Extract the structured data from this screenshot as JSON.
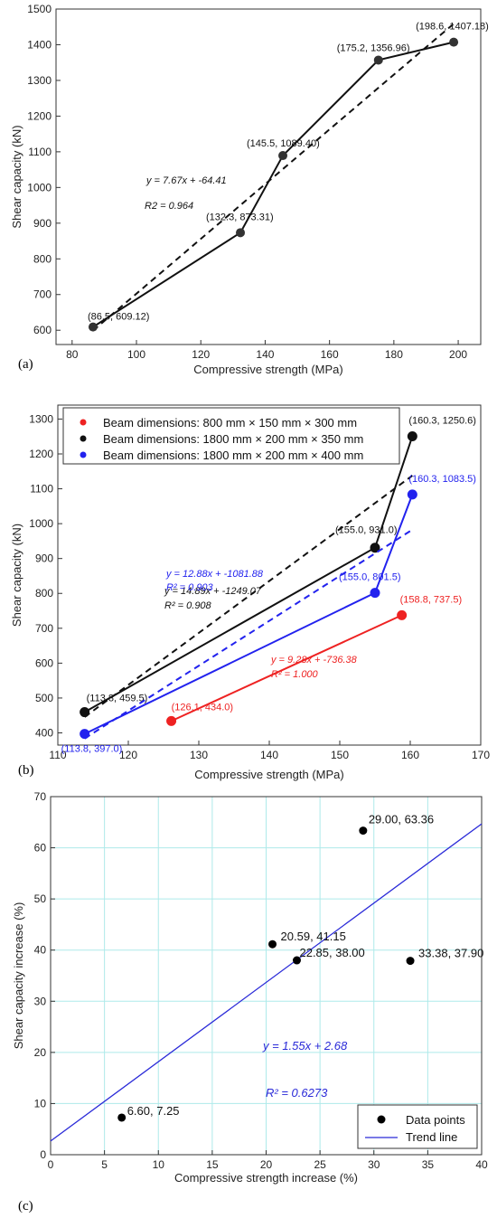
{
  "chart_data": [
    {
      "panel": "(a)",
      "type": "line",
      "xlabel": "Compressive strength (MPa)",
      "ylabel": "Shear capacity (kN)",
      "xlim": [
        75,
        207
      ],
      "ylim": [
        560,
        1500
      ],
      "xticks": [
        80,
        100,
        120,
        140,
        160,
        180,
        200
      ],
      "yticks": [
        600,
        700,
        800,
        900,
        1000,
        1100,
        1200,
        1300,
        1400,
        1500
      ],
      "grid": false,
      "series": [
        {
          "color": "#111111",
          "x": [
            86.5,
            132.3,
            145.5,
            175.2,
            198.6
          ],
          "y": [
            609.12,
            873.31,
            1089.4,
            1356.96,
            1407.18
          ]
        }
      ],
      "point_labels": [
        "(86.5, 609.12)",
        "(132.3, 873.31)",
        "(145.5, 1089.40)",
        "(175.2, 1356.96)",
        "(198.6, 1407.18)"
      ],
      "trend": {
        "slope": 7.67,
        "intercept": -64.41,
        "color": "#111111"
      },
      "annotations": [
        "y = 7.67x + -64.41",
        "R2 = 0.964"
      ]
    },
    {
      "panel": "(b)",
      "type": "line",
      "xlabel": "Compressive strength (MPa)",
      "ylabel": "Shear capacity (kN)",
      "xlim": [
        110,
        170
      ],
      "ylim": [
        365,
        1340
      ],
      "xticks": [
        110,
        120,
        130,
        140,
        150,
        160,
        170
      ],
      "yticks": [
        400,
        500,
        600,
        700,
        800,
        900,
        1000,
        1100,
        1200,
        1300
      ],
      "grid": false,
      "legend": "top-left",
      "series": [
        {
          "name": "Beam dimensions: 800 mm × 150 mm × 300 mm",
          "color": "#ee2222",
          "x": [
            126.1,
            158.8
          ],
          "y": [
            434.0,
            737.5
          ],
          "point_labels": [
            "(126.1, 434.0)",
            "(158.8, 737.5)"
          ],
          "trend": {
            "slope": 9.28,
            "intercept": -736.38
          },
          "eq": "y = 9.28x + -736.38",
          "r2": "R² = 1.000"
        },
        {
          "name": "Beam dimensions: 1800 mm × 200 mm × 350 mm",
          "color": "#111111",
          "x": [
            113.8,
            155.0,
            160.3
          ],
          "y": [
            459.5,
            931.0,
            1250.6
          ],
          "point_labels": [
            "(113.8, 459.5)",
            "(155.0, 931.0)",
            "(160.3, 1250.6)"
          ],
          "trend": {
            "slope": 14.89,
            "intercept": -1249.07
          },
          "eq": "y = 14.89x + -1249.07",
          "r2": "R² = 0.908"
        },
        {
          "name": "Beam dimensions: 1800 mm × 200 mm × 400 mm",
          "color": "#2222ee",
          "x": [
            113.8,
            155.0,
            160.3
          ],
          "y": [
            397.0,
            801.5,
            1083.5
          ],
          "point_labels": [
            "(113.8, 397.0)",
            "(155.0, 801.5)",
            "(160.3, 1083.5)"
          ],
          "trend": {
            "slope": 12.88,
            "intercept": -1081.88
          },
          "eq": "y = 12.88x + -1081.88",
          "r2": "R² = 0.903"
        }
      ]
    },
    {
      "panel": "(c)",
      "type": "scatter",
      "xlabel": "Compressive strength increase (%)",
      "ylabel": "Shear capacity increase (%)",
      "xlim": [
        0,
        40
      ],
      "ylim": [
        0,
        70
      ],
      "xticks": [
        0,
        5,
        10,
        15,
        20,
        25,
        30,
        35,
        40
      ],
      "yticks": [
        0,
        10,
        20,
        30,
        40,
        50,
        60,
        70
      ],
      "grid": true,
      "grid_color": "#aeeaea",
      "legend": "bottom-right",
      "legend_entries": [
        "Data points",
        "Trend line"
      ],
      "points": {
        "x": [
          6.6,
          20.59,
          22.85,
          29.0,
          33.38
        ],
        "y": [
          7.25,
          41.15,
          38.0,
          63.36,
          37.9
        ]
      },
      "point_labels": [
        "6.60, 7.25",
        "20.59, 41.15",
        "22.85, 38.00",
        "29.00, 63.36",
        "33.38, 37.90"
      ],
      "trend": {
        "slope": 1.55,
        "intercept": 2.68,
        "color": "#2a2ad8"
      },
      "annotations": [
        "y = 1.55x + 2.68",
        "R² = 0.6273"
      ]
    }
  ]
}
